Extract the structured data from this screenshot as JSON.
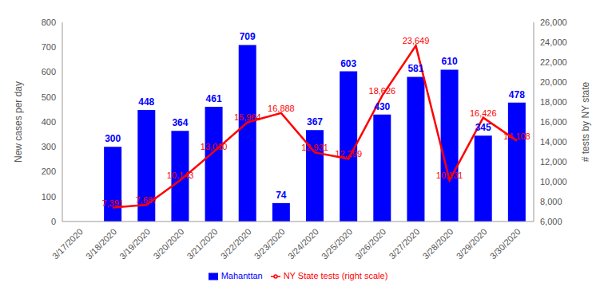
{
  "chart_data": {
    "type": "bar",
    "categories": [
      "3/17/2020",
      "3/18/2020",
      "3/19/2020",
      "3/20/2020",
      "3/21/2020",
      "3/22/2020",
      "3/23/2020",
      "3/24/2020",
      "3/25/2020",
      "3/26/2020",
      "3/27/2020",
      "3/28/2020",
      "3/29/2020",
      "3/30/2020"
    ],
    "series": [
      {
        "name": "Mahanttan",
        "type": "bar",
        "color": "#0000ff",
        "values": [
          null,
          300,
          448,
          364,
          461,
          709,
          74,
          367,
          603,
          430,
          581,
          610,
          345,
          478
        ]
      },
      {
        "name": "NY State tests (right scale)",
        "type": "line",
        "color": "#ff0000",
        "axis": "y2",
        "values": [
          null,
          7391,
          7687,
          10143,
          13010,
          15964,
          16888,
          12931,
          12299,
          18626,
          23649,
          10131,
          16426,
          14108
        ],
        "value_labels": [
          null,
          "7,391",
          "7,687",
          "10,143",
          "13,010",
          "15,964",
          "16,888",
          "12,931",
          "12,299",
          "18,626",
          "23,649",
          "10,131",
          "16,426",
          "14,108"
        ]
      }
    ],
    "y_label": "New cases per day",
    "y2_label": "# tests by NY state",
    "ylim": [
      0,
      800
    ],
    "yticks": [
      0,
      100,
      200,
      300,
      400,
      500,
      600,
      700,
      800
    ],
    "y2lim": [
      6000,
      26000
    ],
    "y2ticks": [
      {
        "value": 6000,
        "label": "6,000"
      },
      {
        "value": 8000,
        "label": "8,000"
      },
      {
        "value": 10000,
        "label": "10,000"
      },
      {
        "value": 12000,
        "label": "12,000"
      },
      {
        "value": 14000,
        "label": "14,000"
      },
      {
        "value": 16000,
        "label": "16,000"
      },
      {
        "value": 18000,
        "label": "18,000"
      },
      {
        "value": 20000,
        "label": "20,000"
      },
      {
        "value": 22000,
        "label": "22,000"
      },
      {
        "value": 24000,
        "label": "24,000"
      },
      {
        "value": 26000,
        "label": "26,000"
      }
    ],
    "grid": false,
    "legend": "bottom",
    "data_labels": true
  }
}
